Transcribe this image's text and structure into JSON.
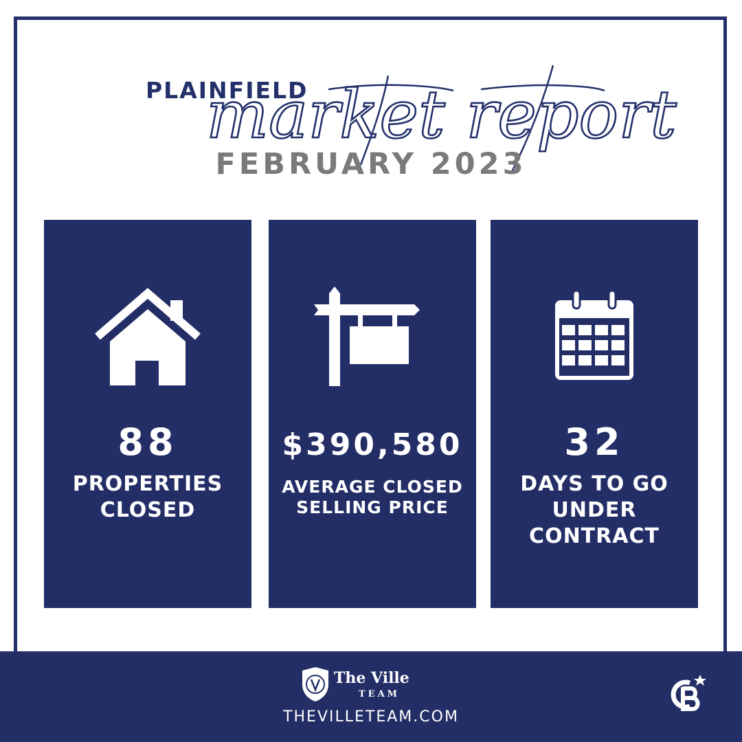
{
  "header": {
    "city": "PLAINFIELD",
    "script_title": "market report",
    "month": "FEBRUARY 2023"
  },
  "stats": [
    {
      "icon": "house-icon",
      "value": "88",
      "label_lines": [
        "PROPERTIES",
        "CLOSED"
      ]
    },
    {
      "icon": "for-sale-sign-icon",
      "value": "$390,580",
      "label_lines": [
        "AVERAGE CLOSED",
        "SELLING PRICE"
      ]
    },
    {
      "icon": "calendar-icon",
      "value": "32",
      "label_lines": [
        "DAYS TO GO",
        "UNDER",
        "CONTRACT"
      ]
    }
  ],
  "footer": {
    "brand_name": "The Ville",
    "brand_sub": "TEAM",
    "website": "THEVILLETEAM.COM",
    "partner_logo": "coldwell-banker-logo"
  },
  "colors": {
    "navy": "#232e66",
    "gray": "#7a7a7a",
    "white": "#ffffff"
  }
}
